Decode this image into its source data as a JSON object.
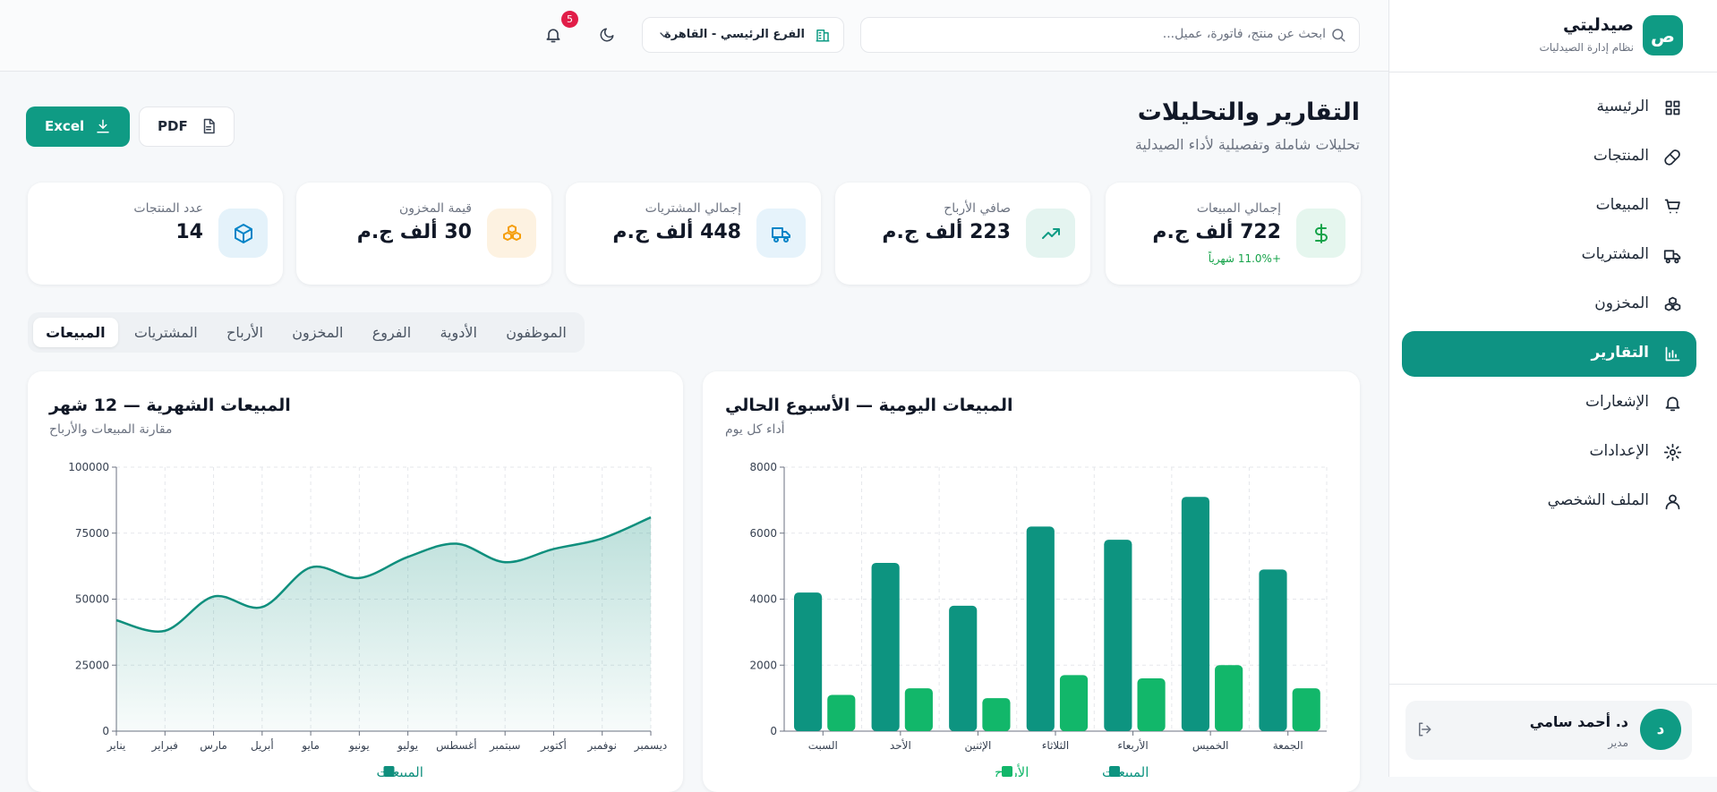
{
  "sidebar": {
    "logo": "ص",
    "title": "صيدليتي",
    "subtitle": "نظام إدارة الصيدليات",
    "nav": [
      {
        "label": "الرئيسية"
      },
      {
        "label": "المنتجات"
      },
      {
        "label": "المبيعات"
      },
      {
        "label": "المشتريات"
      },
      {
        "label": "المخزون"
      },
      {
        "label": "التقارير",
        "active": true
      },
      {
        "label": "الإشعارات"
      },
      {
        "label": "الإعدادات"
      },
      {
        "label": "الملف الشخصي"
      }
    ],
    "user": {
      "avatar": "د",
      "name": "د. أحمد سامي",
      "role": "مدير"
    }
  },
  "header": {
    "search_placeholder": "ابحث عن منتج، فاتورة، عميل...",
    "branch": "الفرع الرئيسي - القاهرة",
    "notifications": 5
  },
  "page": {
    "title": "التقارير والتحليلات",
    "subtitle": "تحليلات شاملة وتفصيلية لأداء الصيدلية",
    "buttons": [
      "Excel",
      "PDF"
    ]
  },
  "kpis": [
    {
      "label": "إجمالي المبيعات",
      "value": "722 ألف ج.م",
      "change": "+11.0% شهرياً"
    },
    {
      "label": "صافي الأرباح",
      "value": "223 ألف ج.م"
    },
    {
      "label": "إجمالي المشتريات",
      "value": "448 ألف ج.م"
    },
    {
      "label": "قيمة المخزون",
      "value": "30 ألف ج.م"
    },
    {
      "label": "عدد المنتجات",
      "value": "14"
    }
  ],
  "tabs": [
    {
      "label": "الموظفون"
    },
    {
      "label": "الأدوية"
    },
    {
      "label": "الفروع"
    },
    {
      "label": "المخزون"
    },
    {
      "label": "الأرباح"
    },
    {
      "label": "المشتريات"
    },
    {
      "label": "المبيعات",
      "active": true
    }
  ],
  "chart_data": [
    {
      "type": "area",
      "title": "المبيعات الشهرية — 12 شهر",
      "subtitle": "مقارنة المبيعات والأرباح",
      "categories": [
        "يناير",
        "فبراير",
        "مارس",
        "أبريل",
        "مايو",
        "يونيو",
        "يوليو",
        "أغسطس",
        "سبتمبر",
        "أكتوبر",
        "نوفمبر",
        "ديسمبر"
      ],
      "series": [
        {
          "name": "المبيعات",
          "color": "#0f8f7d",
          "values": [
            42000,
            38000,
            51000,
            47000,
            62000,
            58000,
            66000,
            71000,
            64000,
            69000,
            73000,
            81000
          ]
        }
      ],
      "ylim": [
        0,
        100000
      ],
      "yticks": [
        0,
        25000,
        50000,
        75000,
        100000
      ],
      "grid": true
    },
    {
      "type": "bar",
      "title": "المبيعات اليومية — الأسبوع الحالي",
      "subtitle": "أداء كل يوم",
      "categories": [
        "السبت",
        "الأحد",
        "الإثنين",
        "الثلاثاء",
        "الأربعاء",
        "الخميس",
        "الجمعة"
      ],
      "series": [
        {
          "name": "المبيعات",
          "color": "#0d9480",
          "values": [
            4200,
            5100,
            3800,
            6200,
            5800,
            7100,
            4900
          ]
        },
        {
          "name": "الأرباح",
          "color": "#12b76a",
          "values": [
            1100,
            1300,
            1000,
            1700,
            1600,
            2000,
            1300
          ]
        }
      ],
      "ylim": [
        0,
        8000
      ],
      "yticks": [
        0,
        2000,
        4000,
        6000,
        8000
      ],
      "grid": true
    }
  ]
}
